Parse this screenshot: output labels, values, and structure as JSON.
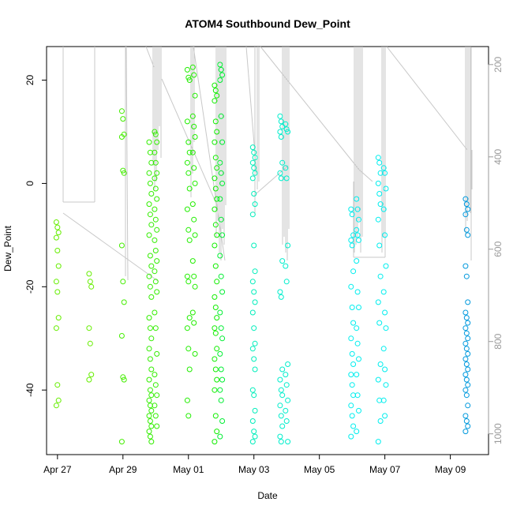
{
  "chart_data": {
    "type": "scatter",
    "title": "ATOM4 Southbound Dew_Point",
    "xlabel": "Date",
    "ylabel": "Dew_Point",
    "x_range": [
      "2019-04-26T16:00",
      "2019-05-10T04:00"
    ],
    "x_ticks": [
      {
        "date": "2019-04-27",
        "label": "Apr 27"
      },
      {
        "date": "2019-04-29",
        "label": "Apr 29"
      },
      {
        "date": "2019-05-01",
        "label": "May 01"
      },
      {
        "date": "2019-05-03",
        "label": "May 03"
      },
      {
        "date": "2019-05-05",
        "label": "May 05"
      },
      {
        "date": "2019-05-07",
        "label": "May 07"
      },
      {
        "date": "2019-05-09",
        "label": "May 09"
      }
    ],
    "ylim": [
      -52.5,
      26.5
    ],
    "y_ticks": [
      -40,
      -20,
      0,
      20
    ],
    "right_axis": {
      "ylim": [
        161,
        1045
      ],
      "ticks": [
        200,
        400,
        600,
        800,
        1000
      ],
      "color": "#9a9a9a",
      "reversed": true
    },
    "marker": "open-circle",
    "color_gradient": "green to blue by time",
    "series": [
      {
        "x": "2019-04-27T00:00",
        "color": "#66ee00",
        "values": [
          -7.5,
          -8.5,
          -9.5,
          -10.5,
          -13,
          -16,
          -19,
          -21,
          -26,
          -28,
          -39,
          -42,
          -43
        ]
      },
      {
        "x": "2019-04-28T00:00",
        "color": "#66ee00",
        "values": [
          -17.5,
          -19,
          -20,
          -28,
          -31,
          -37,
          -38
        ]
      },
      {
        "x": "2019-04-29T00:00",
        "color": "#44ee00",
        "values": [
          14,
          12.5,
          9.5,
          9,
          2.5,
          2,
          -12,
          -19,
          -23,
          -29.5,
          -37.5,
          -38,
          -50
        ]
      },
      {
        "x": "2019-04-29T20:00",
        "color": "#33ee00",
        "values": [
          8,
          6,
          4,
          2,
          0,
          -2,
          -4,
          -6,
          -8,
          -10,
          -14,
          -16,
          -18,
          -20,
          -22,
          -26,
          -28,
          -30,
          -32,
          -34,
          -36,
          -38,
          -40,
          -41,
          -42,
          -43,
          -44,
          -45,
          -46,
          -47,
          -48,
          -49,
          -50
        ]
      },
      {
        "x": "2019-04-30T00:00",
        "color": "#33ee00",
        "values": [
          10,
          9.5,
          8,
          6,
          4,
          2,
          1,
          -1,
          -3,
          -5,
          -7,
          -9,
          -11,
          -13,
          -15,
          -17,
          -19,
          -21,
          -25,
          -28,
          -33,
          -37,
          -39,
          -41,
          -43,
          -45,
          -47
        ]
      },
      {
        "x": "2019-05-01T00:00",
        "color": "#22ee00",
        "values": [
          22,
          20.5,
          20,
          12,
          8,
          6,
          4,
          2,
          -1,
          -5,
          -9,
          -11,
          -18,
          -19,
          -26,
          -28,
          -32,
          -36,
          -42,
          -45
        ]
      },
      {
        "x": "2019-05-01T04:00",
        "color": "#22ee00",
        "values": [
          22.5,
          21,
          17,
          13,
          11,
          9,
          6,
          3,
          0,
          -4,
          -7,
          -10,
          -15,
          -18,
          -20,
          -25,
          -27,
          -33
        ]
      },
      {
        "x": "2019-05-01T20:00",
        "color": "#11ee00",
        "values": [
          19,
          18,
          17,
          16,
          12,
          10,
          8,
          5,
          3,
          1,
          -1,
          -3,
          -5,
          -8,
          -10,
          -12,
          -16,
          -19,
          -22,
          -24,
          -26,
          -28,
          -29,
          -32,
          -34,
          -36,
          -38,
          -40,
          -45,
          -48,
          -50
        ]
      },
      {
        "x": "2019-05-02T00:00",
        "color": "#00ee33",
        "values": [
          23,
          22,
          21,
          20,
          13,
          8,
          4,
          2,
          0,
          -3,
          -7,
          -10,
          -14,
          -18,
          -21,
          -25,
          -28,
          -30,
          -33,
          -36,
          -38,
          -40,
          -42,
          -46,
          -49
        ]
      },
      {
        "x": "2019-05-03T00:00",
        "color": "#00eebb",
        "values": [
          7,
          6,
          5,
          4,
          3,
          2,
          1,
          -2,
          -4,
          -6,
          -12,
          -17,
          -19,
          -21,
          -23,
          -25,
          -28,
          -31,
          -32,
          -34,
          -36,
          -40,
          -41,
          -44,
          -46,
          -48,
          -49,
          -50
        ]
      },
      {
        "x": "2019-05-03T20:00",
        "color": "#00eecc",
        "values": [
          13,
          12,
          11,
          10,
          9,
          4,
          2,
          1,
          -15,
          -21,
          -22,
          -36,
          -38,
          -40,
          -41,
          -43,
          -45,
          -47,
          -49,
          -50
        ]
      },
      {
        "x": "2019-05-04T00:00",
        "color": "#00eecc",
        "values": [
          11.5,
          10.5,
          10,
          3,
          1,
          -12,
          -16,
          -19,
          -35,
          -37,
          -39,
          -42,
          -44,
          -46,
          -50
        ]
      },
      {
        "x": "2019-05-06T00:00",
        "color": "#00eeee",
        "values": [
          -5,
          -6,
          -10,
          -11,
          -12,
          -17,
          -20,
          -24,
          -27,
          -30,
          -33,
          -35,
          -37,
          -39,
          -41,
          -43,
          -45,
          -47,
          -49
        ]
      },
      {
        "x": "2019-05-06T04:00",
        "color": "#00eeee",
        "values": [
          -3,
          -5,
          -7,
          -9,
          -10,
          -11,
          -15,
          -21,
          -24,
          -28,
          -31,
          -34,
          -37,
          -41,
          -44,
          -48
        ]
      },
      {
        "x": "2019-05-06T20:00",
        "color": "#00eeee",
        "values": [
          5,
          4,
          2,
          0,
          -2,
          -4,
          -7,
          -12,
          -18,
          -23,
          -27,
          -35,
          -38,
          -42,
          -46,
          -50
        ]
      },
      {
        "x": "2019-05-07T00:00",
        "color": "#00eeee",
        "values": [
          3,
          2,
          -1,
          -5,
          -10,
          -16,
          -21,
          -25,
          -28,
          -32,
          -36,
          -39,
          -42,
          -45
        ]
      },
      {
        "x": "2019-05-09T12:00",
        "color": "#0099dd",
        "values": [
          -3,
          -4,
          -5,
          -6,
          -9,
          -10,
          -16,
          -18,
          -23,
          -25,
          -26,
          -27,
          -28,
          -29,
          -30,
          -31,
          -32,
          -33,
          -34,
          -35,
          -36,
          -37,
          -38,
          -39,
          -40,
          -41,
          -43,
          -45,
          -46,
          -47,
          -48
        ]
      }
    ]
  }
}
